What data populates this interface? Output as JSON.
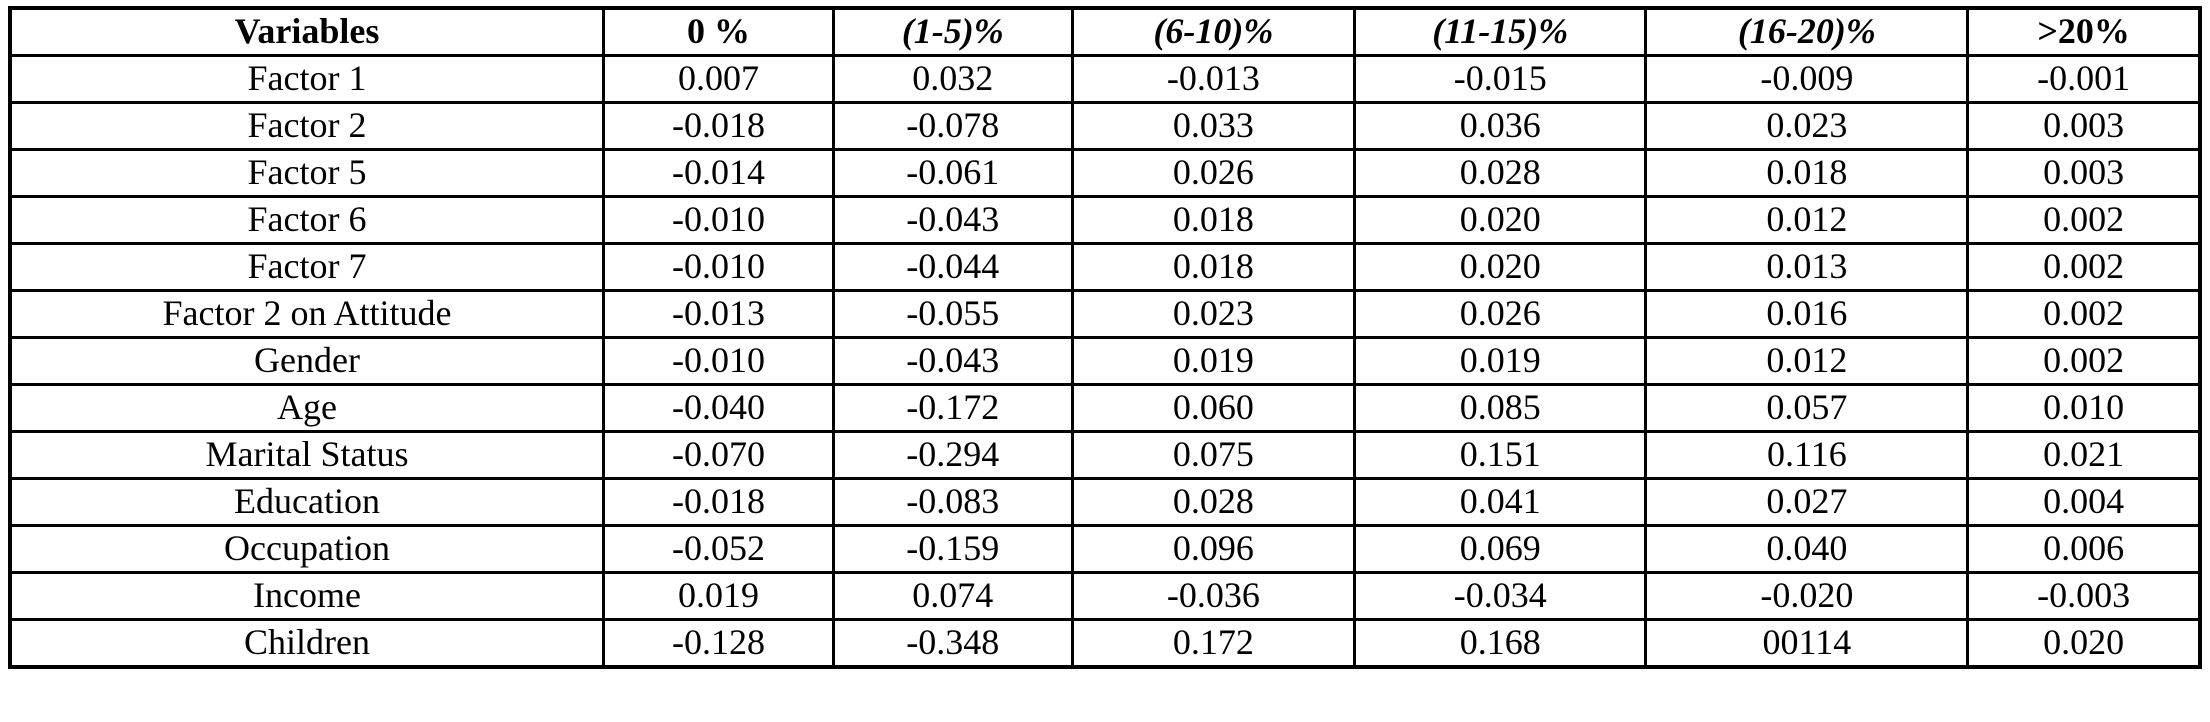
{
  "colors": {
    "background": "#ffffff",
    "text": "#000000",
    "border": "#000000"
  },
  "table": {
    "columns": [
      {
        "label": "Variables",
        "italic": false
      },
      {
        "label": "0 %",
        "italic": false
      },
      {
        "label": "(1-5)%",
        "italic": true
      },
      {
        "label": "(6-10)%",
        "italic": true
      },
      {
        "label": "(11-15)%",
        "italic": true
      },
      {
        "label": "(16-20)%",
        "italic": true
      },
      {
        "label": ">20%",
        "italic": false
      }
    ],
    "rows": [
      {
        "variable": "Factor 1",
        "values": [
          "0.007",
          "0.032",
          "-0.013",
          "-0.015",
          "-0.009",
          "-0.001"
        ]
      },
      {
        "variable": "Factor 2",
        "values": [
          "-0.018",
          "-0.078",
          "0.033",
          "0.036",
          "0.023",
          "0.003"
        ]
      },
      {
        "variable": "Factor 5",
        "values": [
          "-0.014",
          "-0.061",
          "0.026",
          "0.028",
          "0.018",
          "0.003"
        ]
      },
      {
        "variable": "Factor 6",
        "values": [
          "-0.010",
          "-0.043",
          "0.018",
          "0.020",
          "0.012",
          "0.002"
        ]
      },
      {
        "variable": "Factor 7",
        "values": [
          "-0.010",
          "-0.044",
          "0.018",
          "0.020",
          "0.013",
          "0.002"
        ]
      },
      {
        "variable": "Factor 2 on Attitude",
        "values": [
          "-0.013",
          "-0.055",
          "0.023",
          "0.026",
          "0.016",
          "0.002"
        ]
      },
      {
        "variable": "Gender",
        "values": [
          "-0.010",
          "-0.043",
          "0.019",
          "0.019",
          "0.012",
          "0.002"
        ]
      },
      {
        "variable": "Age",
        "values": [
          "-0.040",
          "-0.172",
          "0.060",
          "0.085",
          "0.057",
          "0.010"
        ]
      },
      {
        "variable": "Marital Status",
        "values": [
          "-0.070",
          "-0.294",
          "0.075",
          "0.151",
          "0.116",
          "0.021"
        ]
      },
      {
        "variable": "Education",
        "values": [
          "-0.018",
          "-0.083",
          "0.028",
          "0.041",
          "0.027",
          "0.004"
        ]
      },
      {
        "variable": "Occupation",
        "values": [
          "-0.052",
          "-0.159",
          "0.096",
          "0.069",
          "0.040",
          "0.006"
        ]
      },
      {
        "variable": "Income",
        "values": [
          "0.019",
          "0.074",
          "-0.036",
          "-0.034",
          "-0.020",
          "-0.003"
        ]
      },
      {
        "variable": "Children",
        "values": [
          "-0.128",
          "-0.348",
          "0.172",
          "0.168",
          "00114",
          "0.020"
        ]
      }
    ]
  }
}
